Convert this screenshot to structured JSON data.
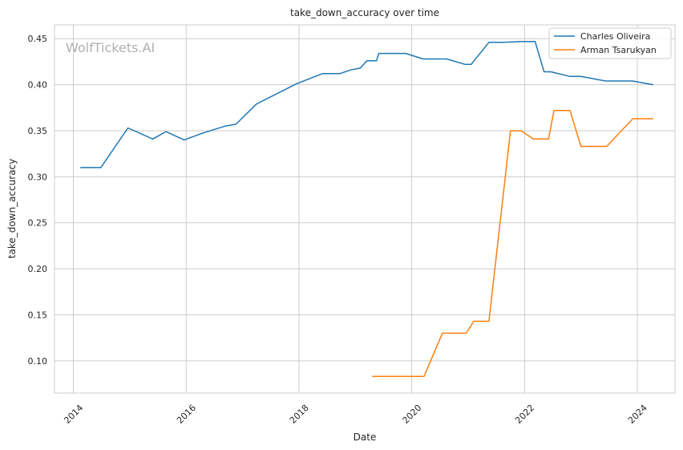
{
  "watermark": "WolfTickets.AI",
  "chart_data": {
    "type": "line",
    "title": "take_down_accuracy over time",
    "xlabel": "Date",
    "ylabel": "take_down_accuracy",
    "xlim": [
      "2013-09-01",
      "2024-09-01"
    ],
    "ylim": [
      0.065,
      0.465
    ],
    "x_ticks": [
      "2014",
      "2016",
      "2018",
      "2020",
      "2022",
      "2024"
    ],
    "y_ticks": [
      "0.10",
      "0.15",
      "0.20",
      "0.25",
      "0.30",
      "0.35",
      "0.40",
      "0.45"
    ],
    "grid": true,
    "legend_position": "top-right",
    "series": [
      {
        "name": "Charles Oliveira",
        "color": "#1f77b4",
        "points": [
          [
            "2014-02-15",
            0.31
          ],
          [
            "2014-06-28",
            0.31
          ],
          [
            "2014-12-20",
            0.353
          ],
          [
            "2015-05-30",
            0.341
          ],
          [
            "2015-08-23",
            0.349
          ],
          [
            "2015-12-19",
            0.34
          ],
          [
            "2016-04-10",
            0.347
          ],
          [
            "2016-09-10",
            0.355
          ],
          [
            "2016-11-19",
            0.357
          ],
          [
            "2017-04-01",
            0.379
          ],
          [
            "2017-12-16",
            0.401
          ],
          [
            "2018-06-01",
            0.412
          ],
          [
            "2018-09-22",
            0.412
          ],
          [
            "2018-12-02",
            0.416
          ],
          [
            "2019-02-02",
            0.418
          ],
          [
            "2019-03-16",
            0.426
          ],
          [
            "2019-05-18",
            0.426
          ],
          [
            "2019-06-01",
            0.434
          ],
          [
            "2019-09-21",
            0.434
          ],
          [
            "2019-11-23",
            0.434
          ],
          [
            "2020-03-14",
            0.428
          ],
          [
            "2020-08-15",
            0.428
          ],
          [
            "2020-12-12",
            0.422
          ],
          [
            "2021-01-20",
            0.422
          ],
          [
            "2021-05-15",
            0.446
          ],
          [
            "2021-08-15",
            0.446
          ],
          [
            "2021-12-11",
            0.447
          ],
          [
            "2022-03-10",
            0.447
          ],
          [
            "2022-05-07",
            0.414
          ],
          [
            "2022-06-20",
            0.414
          ],
          [
            "2022-10-22",
            0.409
          ],
          [
            "2022-12-30",
            0.409
          ],
          [
            "2023-06-10",
            0.404
          ],
          [
            "2023-12-01",
            0.404
          ],
          [
            "2024-04-13",
            0.4
          ]
        ]
      },
      {
        "name": "Arman Tsarukyan",
        "color": "#ff7f0e",
        "points": [
          [
            "2019-04-20",
            0.083
          ],
          [
            "2020-03-20",
            0.083
          ],
          [
            "2020-07-18",
            0.13
          ],
          [
            "2020-12-19",
            0.13
          ],
          [
            "2021-02-06",
            0.143
          ],
          [
            "2021-05-15",
            0.143
          ],
          [
            "2021-10-02",
            0.35
          ],
          [
            "2021-12-10",
            0.35
          ],
          [
            "2022-02-26",
            0.341
          ],
          [
            "2022-06-05",
            0.341
          ],
          [
            "2022-07-10",
            0.372
          ],
          [
            "2022-10-22",
            0.372
          ],
          [
            "2023-01-01",
            0.333
          ],
          [
            "2023-06-17",
            0.333
          ],
          [
            "2023-12-02",
            0.363
          ],
          [
            "2024-04-13",
            0.363
          ]
        ]
      }
    ]
  }
}
